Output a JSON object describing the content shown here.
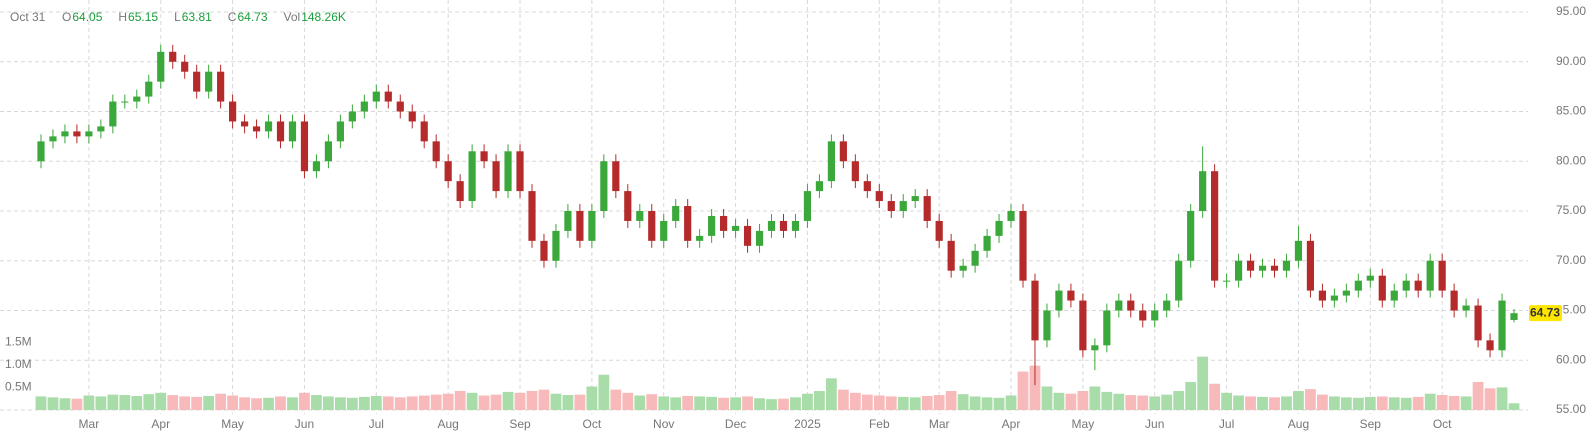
{
  "chart_data": {
    "type": "candlestick",
    "legend": {
      "date": "Oct 31",
      "items": [
        {
          "label": "O",
          "value": 64.05
        },
        {
          "label": "H",
          "value": 65.15
        },
        {
          "label": "L",
          "value": 63.81
        },
        {
          "label": "C",
          "value": 64.73
        },
        {
          "label": "Vol",
          "value": 148260,
          "value_label": "148.26K"
        }
      ]
    },
    "last_price": {
      "value": 64.73
    },
    "up_color": "#3aa83a",
    "down_color": "#b52a2a",
    "volume_up_color": "#a8dca8",
    "volume_down_color": "#f7b9b9",
    "label_value_color": "#1a9e3a",
    "last_price_color": "#ffe600",
    "grid": true,
    "xlim": [
      -0.5,
      123.5
    ],
    "xticks": [
      {
        "value": 4,
        "label": "Mar"
      },
      {
        "value": 10,
        "label": "Apr"
      },
      {
        "value": 16,
        "label": "May"
      },
      {
        "value": 22,
        "label": "Jun"
      },
      {
        "value": 28,
        "label": "Jul"
      },
      {
        "value": 34,
        "label": "Aug"
      },
      {
        "value": 40,
        "label": "Sep"
      },
      {
        "value": 46,
        "label": "Oct"
      },
      {
        "value": 52,
        "label": "Nov"
      },
      {
        "value": 58,
        "label": "Dec"
      },
      {
        "value": 64,
        "label": "2025"
      },
      {
        "value": 70,
        "label": "Feb"
      },
      {
        "value": 75,
        "label": "Mar"
      },
      {
        "value": 81,
        "label": "Apr"
      },
      {
        "value": 87,
        "label": "May"
      },
      {
        "value": 93,
        "label": "Jun"
      },
      {
        "value": 99,
        "label": "Jul"
      },
      {
        "value": 105,
        "label": "Aug"
      },
      {
        "value": 111,
        "label": "Sep"
      },
      {
        "value": 117,
        "label": "Oct"
      }
    ],
    "ylim": [
      55,
      95
    ],
    "yticks": [
      {
        "value": 55,
        "label": "55.00"
      },
      {
        "value": 60,
        "label": "60.00"
      },
      {
        "value": 65,
        "label": "65.00"
      },
      {
        "value": 70,
        "label": "70.00"
      },
      {
        "value": 75,
        "label": "75.00"
      },
      {
        "value": 80,
        "label": "80.00"
      },
      {
        "value": 85,
        "label": "85.00"
      },
      {
        "value": 90,
        "label": "90.00"
      },
      {
        "value": 95,
        "label": "95.00"
      }
    ],
    "y2lim": [
      0,
      8800000
    ],
    "y2ticks": [
      {
        "value": 500000,
        "label": "0.5M"
      },
      {
        "value": 1000000,
        "label": "1.0M"
      },
      {
        "value": 1500000,
        "label": "1.5M"
      }
    ],
    "open": [
      80,
      82,
      82.5,
      83,
      82.5,
      83,
      83.5,
      86,
      86,
      86.5,
      88,
      91,
      90,
      89,
      87,
      89,
      86,
      84,
      83.5,
      83,
      84,
      82,
      84,
      79,
      80,
      82,
      84,
      85,
      86,
      87,
      86,
      85,
      84,
      82,
      80,
      78,
      76,
      81,
      80,
      77,
      81,
      77,
      72,
      70,
      73,
      75,
      72,
      75,
      80,
      77,
      74,
      75,
      72,
      74,
      75.5,
      72,
      72.5,
      74.5,
      73,
      73.5,
      71.5,
      73,
      74,
      73,
      74,
      77,
      78,
      82,
      80,
      78,
      77,
      76,
      75,
      76,
      76.5,
      74,
      72,
      69,
      69.5,
      71,
      72.5,
      74,
      75,
      68,
      62,
      65,
      67,
      66,
      61,
      61.5,
      65,
      66,
      65,
      64,
      65,
      66,
      70,
      75,
      79,
      68,
      68,
      70,
      69,
      69.5,
      69,
      70,
      72,
      67,
      66,
      66.5,
      67,
      68,
      68.5,
      66,
      67,
      68,
      67,
      70,
      67,
      65,
      65.5,
      62,
      61,
      64.05
    ],
    "high": [
      82.7,
      83.2,
      83.7,
      83.7,
      83.7,
      84.2,
      86.7,
      86.7,
      87.2,
      88.7,
      91.7,
      91.7,
      90.7,
      89.7,
      89.7,
      89.7,
      86.7,
      84.7,
      84.2,
      84.7,
      84.7,
      84.7,
      84.7,
      80.7,
      82.7,
      84.7,
      85.7,
      86.7,
      87.7,
      87.7,
      86.7,
      85.7,
      84.7,
      82.7,
      80.7,
      78.7,
      81.7,
      81.7,
      80.7,
      81.7,
      81.7,
      77.7,
      72.7,
      73.7,
      75.7,
      75.7,
      75.7,
      80.7,
      80.7,
      77.7,
      75.7,
      75.7,
      74.7,
      76.2,
      76.2,
      73.2,
      75.2,
      75.2,
      74.2,
      74.2,
      73.7,
      74.7,
      74.7,
      74.7,
      77.7,
      78.7,
      82.7,
      82.7,
      80.7,
      78.7,
      77.7,
      76.7,
      76.7,
      77.2,
      77.2,
      74.7,
      72.7,
      70.2,
      71.7,
      73.2,
      74.7,
      75.7,
      75.7,
      68.7,
      65.7,
      67.7,
      67.7,
      66.7,
      62.2,
      65.7,
      66.7,
      66.7,
      65.7,
      65.7,
      66.7,
      70.7,
      75.7,
      81.5,
      79.7,
      68.7,
      70.7,
      70.7,
      70.2,
      70.2,
      70.7,
      73.5,
      72.7,
      67.7,
      67.2,
      67.7,
      68.7,
      69.2,
      69.2,
      67.7,
      68.7,
      68.7,
      70.7,
      70.7,
      67.7,
      66.2,
      66.2,
      62.7,
      66.7,
      65.15
    ],
    "low": [
      79.3,
      81.3,
      81.8,
      81.8,
      81.8,
      82.3,
      82.8,
      85.3,
      85.3,
      85.8,
      87.3,
      89.3,
      88.3,
      86.3,
      86.3,
      85.3,
      83.3,
      82.8,
      82.3,
      82.3,
      81.3,
      81.3,
      78.3,
      78.3,
      79.3,
      81.3,
      83.3,
      84.3,
      85.3,
      85.3,
      84.3,
      83.3,
      81.3,
      79.3,
      77.3,
      75.3,
      75.3,
      79.3,
      76.3,
      76.3,
      76.3,
      71.3,
      69.3,
      69.3,
      72.3,
      71.3,
      71.3,
      74.3,
      76.3,
      73.3,
      73.3,
      71.3,
      71.3,
      73.3,
      71.3,
      71.3,
      71.8,
      72.3,
      72.3,
      70.8,
      70.8,
      72.3,
      72.3,
      72.3,
      73.3,
      76.3,
      77.3,
      79.3,
      77.3,
      76.3,
      75.3,
      74.3,
      74.3,
      75.3,
      73.3,
      71.3,
      68.3,
      68.3,
      68.8,
      70.3,
      71.8,
      73.3,
      67.3,
      57.5,
      61.3,
      64.3,
      65.3,
      60.3,
      59,
      60.8,
      64.3,
      64.3,
      63.3,
      63.3,
      64.3,
      65.3,
      69.3,
      74.3,
      67.3,
      67.3,
      67.3,
      68.3,
      68.3,
      68.3,
      68.3,
      69.3,
      66.3,
      65.3,
      65.3,
      65.8,
      66.3,
      67.3,
      65.3,
      65.3,
      66.3,
      66.3,
      66.3,
      66.3,
      64.3,
      64.3,
      61.3,
      60.3,
      60.3,
      63.81
    ],
    "close": [
      82,
      82.5,
      83,
      82.5,
      83,
      83.5,
      86,
      86,
      86.5,
      88,
      91,
      90,
      89,
      87,
      89,
      86,
      84,
      83.5,
      83,
      84,
      82,
      84,
      79,
      80,
      82,
      84,
      85,
      86,
      87,
      86,
      85,
      84,
      82,
      80,
      78,
      76,
      81,
      80,
      77,
      81,
      77,
      72,
      70,
      73,
      75,
      72,
      75,
      80,
      77,
      74,
      75,
      72,
      74,
      75.5,
      72,
      72.5,
      74.5,
      73,
      73.5,
      71.5,
      73,
      74,
      73,
      74,
      77,
      78,
      82,
      80,
      78,
      77,
      76,
      75,
      76,
      76.5,
      74,
      72,
      69,
      69.5,
      71,
      72.5,
      74,
      75,
      68,
      62,
      65,
      67,
      66,
      61,
      61.5,
      65,
      66,
      65,
      64,
      65,
      66,
      70,
      75,
      79,
      68,
      68,
      70,
      69,
      69.5,
      69,
      70,
      72,
      67,
      66,
      66.5,
      67,
      68,
      68.5,
      66,
      67,
      68,
      67,
      70,
      67,
      65,
      65.5,
      62,
      61,
      66,
      64.73
    ],
    "volume": [
      300000,
      280000,
      260000,
      250000,
      320000,
      300000,
      340000,
      330000,
      310000,
      350000,
      380000,
      330000,
      300000,
      290000,
      310000,
      360000,
      320000,
      280000,
      260000,
      270000,
      300000,
      280000,
      380000,
      330000,
      300000,
      280000,
      270000,
      290000,
      310000,
      300000,
      280000,
      300000,
      320000,
      340000,
      360000,
      420000,
      380000,
      320000,
      340000,
      400000,
      380000,
      420000,
      450000,
      360000,
      330000,
      340000,
      520000,
      780000,
      450000,
      380000,
      320000,
      350000,
      300000,
      280000,
      310000,
      300000,
      290000,
      270000,
      280000,
      300000,
      260000,
      240000,
      250000,
      280000,
      360000,
      420000,
      700000,
      450000,
      380000,
      340000,
      320000,
      300000,
      290000,
      280000,
      310000,
      330000,
      420000,
      350000,
      300000,
      280000,
      270000,
      320000,
      850000,
      980000,
      520000,
      380000,
      360000,
      420000,
      520000,
      400000,
      360000,
      330000,
      320000,
      300000,
      340000,
      420000,
      620000,
      1180000,
      580000,
      380000,
      320000,
      300000,
      290000,
      280000,
      300000,
      420000,
      460000,
      340000,
      300000,
      280000,
      270000,
      290000,
      300000,
      280000,
      270000,
      290000,
      360000,
      330000,
      310000,
      300000,
      620000,
      480000,
      500000,
      148260
    ]
  }
}
